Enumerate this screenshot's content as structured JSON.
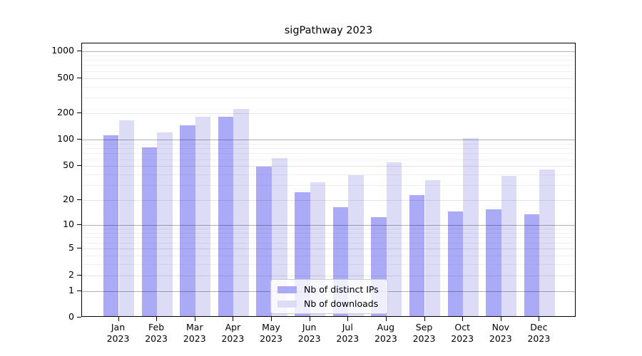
{
  "title": "sigPathway 2023",
  "chart_data": {
    "type": "bar",
    "title": "sigPathway 2023",
    "months": [
      "Jan",
      "Feb",
      "Mar",
      "Apr",
      "May",
      "Jun",
      "Jul",
      "Aug",
      "Sep",
      "Oct",
      "Nov",
      "Dec"
    ],
    "year_label": "2023",
    "categories": [
      "Jan 2023",
      "Feb 2023",
      "Mar 2023",
      "Apr 2023",
      "May 2023",
      "Jun 2023",
      "Jul 2023",
      "Aug 2023",
      "Sep 2023",
      "Oct 2023",
      "Nov 2023",
      "Dec 2023"
    ],
    "series": [
      {
        "name": "Nb of distinct IPs",
        "color": "#aaaaf7",
        "values": [
          108,
          79,
          140,
          177,
          47,
          24,
          16,
          12,
          22,
          14,
          15,
          13
        ]
      },
      {
        "name": "Nb of downloads",
        "color": "#dcdcf7",
        "values": [
          160,
          117,
          174,
          215,
          60,
          31,
          38,
          53,
          33,
          100,
          37,
          44
        ]
      }
    ],
    "y_ticks": [
      0,
      1,
      2,
      5,
      10,
      20,
      50,
      100,
      200,
      500,
      1000
    ],
    "y_scale": "log10(1+v)",
    "ylim": [
      0,
      1226
    ],
    "grid": true,
    "legend_position": "bottom-center",
    "colors": {
      "major_gridline": "rgba(0,0,0,0.30)",
      "light_gridline": "rgba(0,0,0,0.10)",
      "minor_gridline": "rgba(0,0,0,0.05)",
      "axis": "#000000",
      "background": "#ffffff"
    }
  }
}
